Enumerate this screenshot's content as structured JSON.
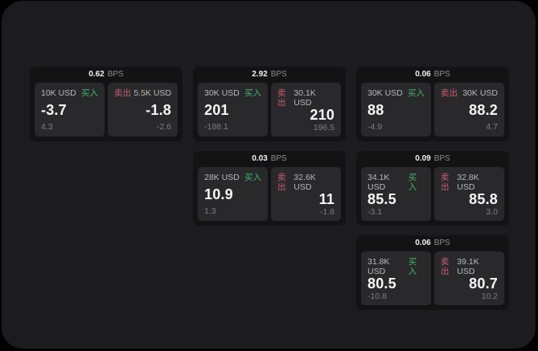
{
  "colors": {
    "page_bg": "#000000",
    "panel_bg": "#1c1c1e",
    "card_bg": "#131314",
    "tile_bg": "#29292b",
    "accent_green": "#40b66e",
    "accent_red": "#ce5a70"
  },
  "bps_unit": "BPS",
  "labels": {
    "buy": "买入",
    "sell": "卖出"
  },
  "cards": [
    {
      "bps_value": "0.62",
      "bps_unit": "BPS",
      "buy": {
        "amount": "10K USD",
        "side": "买入",
        "value": "-3.7",
        "delta": "4.3"
      },
      "sell": {
        "side": "卖出",
        "amount": "5.5K USD",
        "value": "-1.8",
        "delta": "-2.6"
      }
    },
    {
      "bps_value": "2.92",
      "bps_unit": "BPS",
      "buy": {
        "amount": "30K USD",
        "side": "买入",
        "value": "201",
        "delta": "-188.1"
      },
      "sell": {
        "side": "卖出",
        "amount": "30.1K USD",
        "value": "210",
        "delta": "196.5"
      }
    },
    {
      "bps_value": "0.06",
      "bps_unit": "BPS",
      "buy": {
        "amount": "30K USD",
        "side": "买入",
        "value": "88",
        "delta": "-4.9"
      },
      "sell": {
        "side": "卖出",
        "amount": "30K USD",
        "value": "88.2",
        "delta": "4.7"
      }
    },
    {
      "bps_value": "0.03",
      "bps_unit": "BPS",
      "buy": {
        "amount": "28K USD",
        "side": "买入",
        "value": "10.9",
        "delta": "1.3"
      },
      "sell": {
        "side": "卖出",
        "amount": "32.6K USD",
        "value": "11",
        "delta": "-1.8"
      }
    },
    {
      "bps_value": "0.09",
      "bps_unit": "BPS",
      "buy": {
        "amount": "34.1K USD",
        "side": "买入",
        "value": "85.5",
        "delta": "-3.1"
      },
      "sell": {
        "side": "卖出",
        "amount": "32.8K USD",
        "value": "85.8",
        "delta": "3.0"
      }
    },
    {
      "bps_value": "0.06",
      "bps_unit": "BPS",
      "buy": {
        "amount": "31.8K USD",
        "side": "买入",
        "value": "80.5",
        "delta": "-10.8"
      },
      "sell": {
        "side": "卖出",
        "amount": "39.1K USD",
        "value": "80.7",
        "delta": "10.2"
      }
    }
  ]
}
